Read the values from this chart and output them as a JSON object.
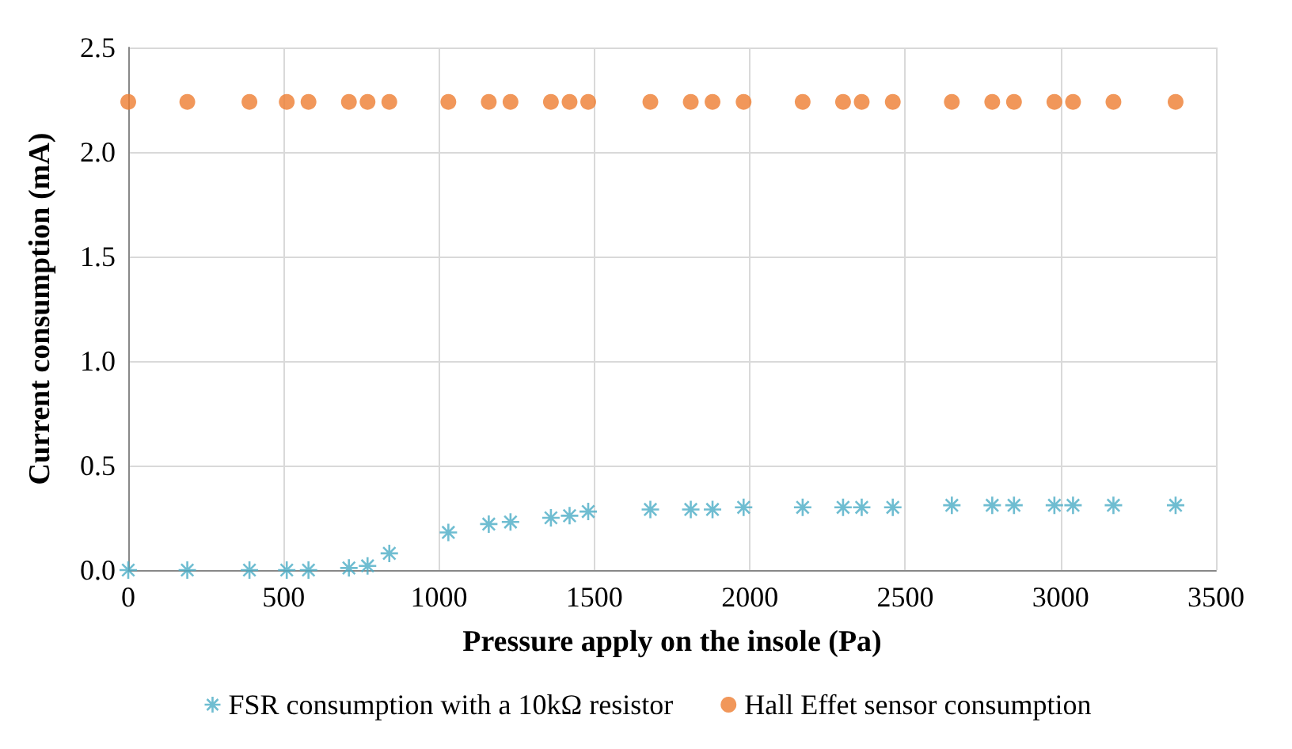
{
  "chart_data": {
    "type": "scatter",
    "xlabel": "Pressure apply on the insole (Pa)",
    "ylabel": "Current consumption (mA)",
    "x": [
      0,
      190,
      390,
      510,
      580,
      710,
      770,
      840,
      1030,
      1160,
      1230,
      1360,
      1420,
      1480,
      1680,
      1810,
      1880,
      1980,
      2170,
      2300,
      2360,
      2460,
      2650,
      2780,
      2850,
      2980,
      3040,
      3170,
      3370
    ],
    "series": [
      {
        "name": "FSR consumption with a 10kΩ resistor",
        "color": "#4bacc6",
        "marker": "cross",
        "values": [
          0,
          0,
          0,
          0,
          0,
          0.01,
          0.02,
          0.08,
          0.18,
          0.22,
          0.23,
          0.25,
          0.26,
          0.28,
          0.29,
          0.29,
          0.29,
          0.3,
          0.3,
          0.3,
          0.3,
          0.3,
          0.31,
          0.31,
          0.31,
          0.31,
          0.31,
          0.31,
          0.31
        ]
      },
      {
        "name": "Hall Effet sensor consumption",
        "color": "#ed7d31",
        "marker": "circle",
        "values": [
          2.24,
          2.24,
          2.24,
          2.24,
          2.24,
          2.24,
          2.24,
          2.24,
          2.24,
          2.24,
          2.24,
          2.24,
          2.24,
          2.24,
          2.24,
          2.24,
          2.24,
          2.24,
          2.24,
          2.24,
          2.24,
          2.24,
          2.24,
          2.24,
          2.24,
          2.24,
          2.24,
          2.24,
          2.24
        ]
      }
    ],
    "xlim": [
      0,
      3500
    ],
    "xticks": [
      0,
      500,
      1000,
      1500,
      2000,
      2500,
      3000,
      3500
    ],
    "ylim": [
      0,
      2.5
    ],
    "yticks": [
      {
        "value": 0,
        "label": "0.0"
      },
      {
        "value": 0.5,
        "label": "0.5"
      },
      {
        "value": 1,
        "label": "1.0"
      },
      {
        "value": 1.5,
        "label": "1.5"
      },
      {
        "value": 2,
        "label": "2.0"
      },
      {
        "value": 2.5,
        "label": "2.5"
      }
    ],
    "grid": true,
    "legend": "bottom"
  }
}
